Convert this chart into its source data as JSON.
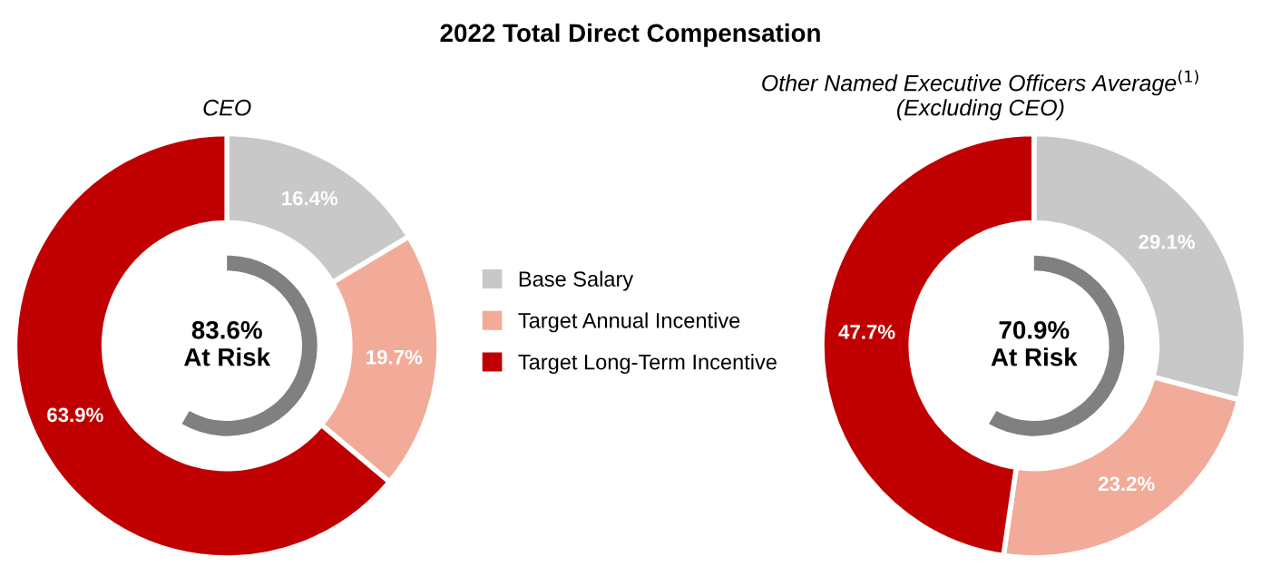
{
  "chart_data": [
    {
      "type": "donut",
      "title": "2022 Total Direct Compensation",
      "subtitle": "CEO",
      "categories": [
        "Base Salary",
        "Target Annual Incentive",
        "Target Long-Term Incentive"
      ],
      "values": [
        16.4,
        19.7,
        63.9
      ],
      "colors": [
        "#c8c8c8",
        "#f2ab98",
        "#c00000"
      ],
      "value_labels": [
        "16.4%",
        "19.7%",
        "63.9%"
      ],
      "legend": "right",
      "annotations": [
        "83.6%\nAt Risk"
      ]
    },
    {
      "type": "donut",
      "subtitle": "Other Named Executive Officers Average$^{(1)}$\n(Excluding CEO)",
      "categories": [
        null,
        null,
        null
      ],
      "values": [
        29.1,
        23.2,
        47.7
      ],
      "colors": [
        "#c8c8c8",
        "#f2ab98",
        "#c00000"
      ],
      "value_labels": [
        "29.1%",
        "23.2%",
        "47.7%"
      ],
      "annotations": [
        "70.9%\nAt Risk"
      ]
    }
  ]
}
